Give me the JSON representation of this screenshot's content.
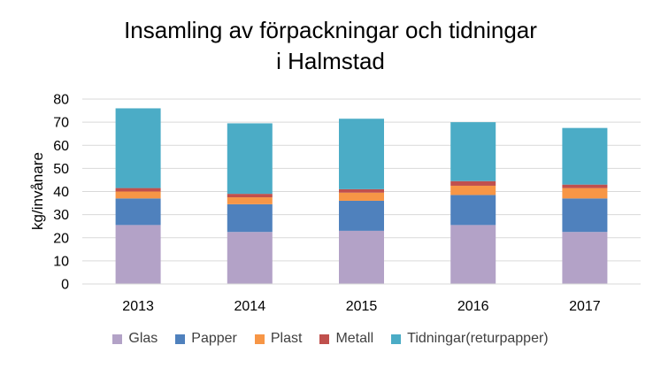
{
  "chart_data": {
    "type": "bar",
    "stacked": true,
    "title": "Insamling av förpackningar och tidningar",
    "subtitle": "i Halmstad",
    "xlabel": "",
    "ylabel": "kg/invånare",
    "ylim": [
      0,
      80
    ],
    "yticks": [
      "0",
      "10",
      "20",
      "30",
      "40",
      "50",
      "60",
      "70",
      "80"
    ],
    "grid": true,
    "legend_position": "bottom",
    "categories": [
      "2013",
      "2014",
      "2015",
      "2016",
      "2017"
    ],
    "series": [
      {
        "name": "Glas",
        "color": "#b3a2c7",
        "values": [
          25.5,
          22.5,
          23,
          25.5,
          22.5
        ]
      },
      {
        "name": "Papper",
        "color": "#4f81bd",
        "values": [
          11.5,
          12,
          13,
          13,
          14.5
        ]
      },
      {
        "name": "Plast",
        "color": "#f79646",
        "values": [
          3,
          3,
          3.5,
          4,
          4.5
        ]
      },
      {
        "name": "Metall",
        "color": "#c0504d",
        "values": [
          1.5,
          1.5,
          1.5,
          2,
          1.5
        ]
      },
      {
        "name": "Tidningar(returpapper)",
        "color": "#4bacc6",
        "values": [
          34.5,
          30.5,
          30.5,
          25.5,
          24.5
        ]
      }
    ]
  }
}
